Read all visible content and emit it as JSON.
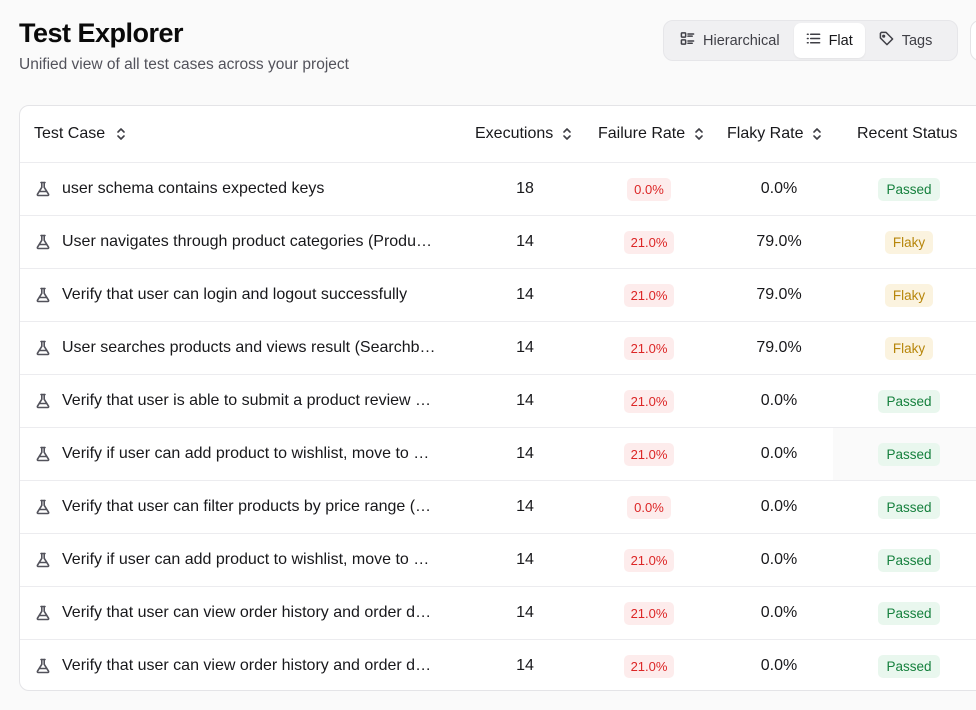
{
  "header": {
    "title": "Test Explorer",
    "subtitle": "Unified view of all test cases across your project"
  },
  "view_toggle": {
    "options": [
      "Hierarchical",
      "Flat",
      "Tags"
    ],
    "selected": "Flat"
  },
  "table": {
    "columns": [
      "Test Case",
      "Executions",
      "Failure Rate",
      "Flaky Rate",
      "Recent Status"
    ],
    "rows": [
      {
        "name": "user schema contains expected keys",
        "executions": "18",
        "failure_rate": "0.0%",
        "flaky_rate": "0.0%",
        "status": "Passed"
      },
      {
        "name": "User navigates through product categories (Produ…",
        "executions": "14",
        "failure_rate": "21.0%",
        "flaky_rate": "79.0%",
        "status": "Flaky"
      },
      {
        "name": "Verify that user can login and logout successfully",
        "executions": "14",
        "failure_rate": "21.0%",
        "flaky_rate": "79.0%",
        "status": "Flaky"
      },
      {
        "name": "User searches products and views result (Searchb…",
        "executions": "14",
        "failure_rate": "21.0%",
        "flaky_rate": "79.0%",
        "status": "Flaky"
      },
      {
        "name": "Verify that user is able to submit a product review …",
        "executions": "14",
        "failure_rate": "21.0%",
        "flaky_rate": "0.0%",
        "status": "Passed"
      },
      {
        "name": "Verify if user can add product to wishlist, move to …",
        "executions": "14",
        "failure_rate": "21.0%",
        "flaky_rate": "0.0%",
        "status": "Passed"
      },
      {
        "name": "Verify that user can filter products by price range (…",
        "executions": "14",
        "failure_rate": "0.0%",
        "flaky_rate": "0.0%",
        "status": "Passed"
      },
      {
        "name": "Verify if user can add product to wishlist, move to …",
        "executions": "14",
        "failure_rate": "21.0%",
        "flaky_rate": "0.0%",
        "status": "Passed"
      },
      {
        "name": "Verify that user can view order history and order d…",
        "executions": "14",
        "failure_rate": "21.0%",
        "flaky_rate": "0.0%",
        "status": "Passed"
      },
      {
        "name": "Verify that user can view order history and order d…",
        "executions": "14",
        "failure_rate": "21.0%",
        "flaky_rate": "0.0%",
        "status": "Passed"
      }
    ]
  },
  "colors": {
    "failure_badge_bg": "#fdecec",
    "failure_badge_text": "#dc2626",
    "passed_bg": "#e9f7ee",
    "passed_text": "#15803d",
    "flaky_bg": "#fbf3df",
    "flaky_text": "#b7860b"
  },
  "icons": {
    "row_icon": "flask-icon",
    "sort_icon": "chevrons-up-down-icon",
    "hierarchical_icon": "list-tree-icon",
    "flat_icon": "list-icon",
    "tags_icon": "tag-icon"
  }
}
